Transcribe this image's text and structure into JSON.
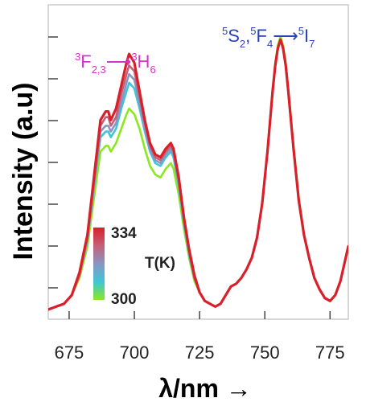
{
  "chart_data": {
    "type": "line",
    "xlabel": "λ/nm →",
    "ylabel": "Intensity (a.u)",
    "xlim": [
      667,
      782
    ],
    "ylim": [
      0,
      1.05
    ],
    "x_ticks": [
      675,
      700,
      725,
      750,
      775
    ],
    "y_tick_count": 7,
    "y_tick_labels_shown": false,
    "annotations": [
      {
        "id": "ann1",
        "parts": [
          {
            "t": "3",
            "s": "sup"
          },
          {
            "t": "F",
            "s": ""
          },
          {
            "t": "2,3",
            "s": "sub"
          },
          {
            "t": "⟶",
            "s": ""
          },
          {
            "t": "3",
            "s": "sup"
          },
          {
            "t": "H",
            "s": ""
          },
          {
            "t": "6",
            "s": "sub"
          }
        ],
        "color": "#d633c7"
      },
      {
        "id": "ann2",
        "parts": [
          {
            "t": "5",
            "s": "sup"
          },
          {
            "t": "S",
            "s": ""
          },
          {
            "t": "2",
            "s": "sub"
          },
          {
            "t": ",",
            "s": ""
          },
          {
            "t": "5",
            "s": "sup"
          },
          {
            "t": "F",
            "s": ""
          },
          {
            "t": "4",
            "s": "sub"
          },
          {
            "t": "⟶",
            "s": ""
          },
          {
            "t": "5",
            "s": "sup"
          },
          {
            "t": "I",
            "s": ""
          },
          {
            "t": "7",
            "s": "sub"
          }
        ],
        "color": "#2b3fb8"
      }
    ],
    "colorbar": {
      "title": "T(K)",
      "min_label": "300",
      "max_label": "334",
      "colors": [
        "#8be81e",
        "#3fc6d6",
        "#8a95c4",
        "#c46076",
        "#d9202a"
      ]
    },
    "x": [
      667,
      670,
      673,
      676,
      679,
      682,
      685,
      687,
      689,
      690,
      691,
      693,
      695,
      697,
      698,
      700,
      702,
      704,
      706,
      708,
      710,
      712,
      714,
      715,
      717,
      719,
      721,
      723,
      725,
      727,
      729,
      731,
      733,
      735,
      737,
      739,
      741,
      743,
      745,
      747,
      749,
      751,
      753,
      754,
      755,
      756,
      757,
      758,
      759,
      761,
      763,
      765,
      767,
      769,
      771,
      773,
      775,
      777,
      779,
      782
    ],
    "series": [
      {
        "color": "#8be81e",
        "values": [
          0.0,
          0.01,
          0.02,
          0.05,
          0.11,
          0.22,
          0.42,
          0.55,
          0.57,
          0.57,
          0.55,
          0.58,
          0.63,
          0.68,
          0.7,
          0.68,
          0.63,
          0.56,
          0.5,
          0.47,
          0.46,
          0.49,
          0.51,
          0.49,
          0.4,
          0.28,
          0.18,
          0.1,
          0.06,
          0.03,
          0.02,
          0.01,
          0.02,
          0.05,
          0.08,
          0.09,
          0.11,
          0.14,
          0.18,
          0.25,
          0.37,
          0.55,
          0.77,
          0.86,
          0.92,
          0.95,
          0.92,
          0.86,
          0.77,
          0.57,
          0.39,
          0.26,
          0.18,
          0.11,
          0.07,
          0.04,
          0.03,
          0.05,
          0.1,
          0.22
        ]
      },
      {
        "color": "#3fc6d6",
        "values": [
          0.0,
          0.01,
          0.02,
          0.05,
          0.12,
          0.24,
          0.46,
          0.6,
          0.62,
          0.62,
          0.6,
          0.63,
          0.7,
          0.76,
          0.79,
          0.77,
          0.7,
          0.62,
          0.55,
          0.51,
          0.5,
          0.53,
          0.55,
          0.53,
          0.43,
          0.3,
          0.19,
          0.11,
          0.06,
          0.03,
          0.02,
          0.01,
          0.02,
          0.05,
          0.08,
          0.09,
          0.11,
          0.14,
          0.18,
          0.25,
          0.37,
          0.55,
          0.76,
          0.85,
          0.91,
          0.94,
          0.91,
          0.85,
          0.76,
          0.56,
          0.38,
          0.26,
          0.18,
          0.11,
          0.07,
          0.04,
          0.03,
          0.05,
          0.1,
          0.22
        ]
      },
      {
        "color": "#8a95c4",
        "values": [
          0.0,
          0.01,
          0.02,
          0.05,
          0.12,
          0.25,
          0.47,
          0.62,
          0.64,
          0.64,
          0.62,
          0.65,
          0.72,
          0.79,
          0.82,
          0.8,
          0.72,
          0.63,
          0.56,
          0.52,
          0.51,
          0.54,
          0.56,
          0.54,
          0.44,
          0.31,
          0.2,
          0.11,
          0.06,
          0.03,
          0.02,
          0.01,
          0.02,
          0.05,
          0.08,
          0.09,
          0.11,
          0.14,
          0.18,
          0.25,
          0.37,
          0.55,
          0.76,
          0.85,
          0.91,
          0.94,
          0.91,
          0.85,
          0.76,
          0.56,
          0.38,
          0.26,
          0.18,
          0.11,
          0.07,
          0.04,
          0.03,
          0.05,
          0.1,
          0.22
        ]
      },
      {
        "color": "#c46076",
        "values": [
          0.0,
          0.01,
          0.02,
          0.05,
          0.12,
          0.25,
          0.48,
          0.64,
          0.67,
          0.67,
          0.64,
          0.67,
          0.75,
          0.82,
          0.85,
          0.83,
          0.74,
          0.65,
          0.57,
          0.53,
          0.52,
          0.55,
          0.57,
          0.55,
          0.45,
          0.31,
          0.2,
          0.11,
          0.06,
          0.03,
          0.02,
          0.01,
          0.02,
          0.05,
          0.08,
          0.09,
          0.11,
          0.14,
          0.18,
          0.25,
          0.37,
          0.55,
          0.76,
          0.85,
          0.91,
          0.94,
          0.91,
          0.85,
          0.76,
          0.56,
          0.38,
          0.26,
          0.18,
          0.11,
          0.07,
          0.04,
          0.03,
          0.05,
          0.1,
          0.22
        ]
      },
      {
        "color": "#d9202a",
        "values": [
          0.0,
          0.01,
          0.02,
          0.05,
          0.13,
          0.26,
          0.5,
          0.66,
          0.69,
          0.69,
          0.66,
          0.7,
          0.78,
          0.86,
          0.89,
          0.86,
          0.76,
          0.66,
          0.58,
          0.54,
          0.53,
          0.56,
          0.58,
          0.56,
          0.46,
          0.32,
          0.21,
          0.12,
          0.06,
          0.03,
          0.02,
          0.01,
          0.02,
          0.05,
          0.08,
          0.09,
          0.11,
          0.14,
          0.18,
          0.25,
          0.37,
          0.55,
          0.76,
          0.85,
          0.91,
          0.94,
          0.91,
          0.85,
          0.76,
          0.56,
          0.38,
          0.26,
          0.18,
          0.11,
          0.07,
          0.04,
          0.03,
          0.05,
          0.1,
          0.22
        ]
      }
    ]
  }
}
